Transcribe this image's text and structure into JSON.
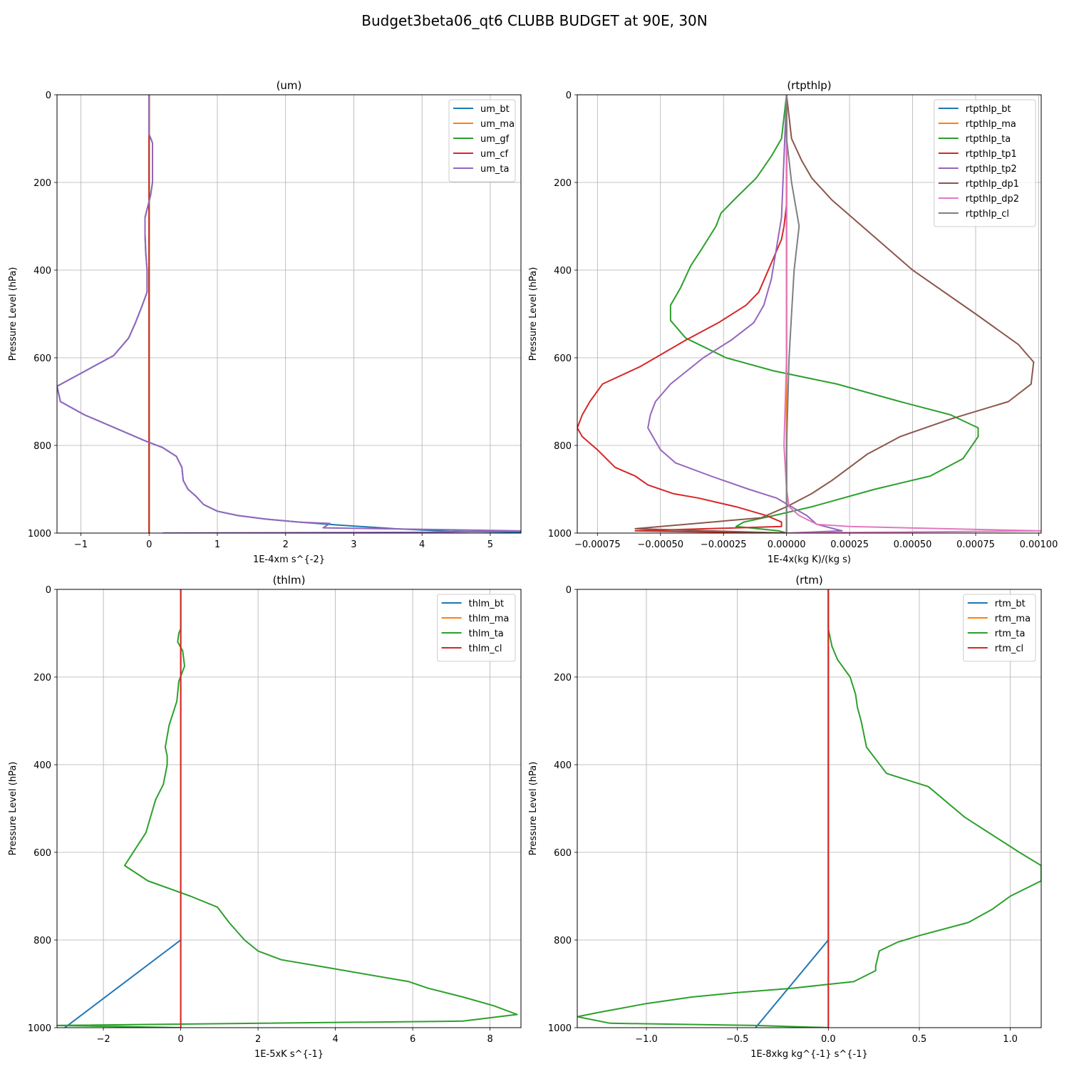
{
  "figure": {
    "title": "Budget3beta06_qt6 CLUBB BUDGET at 90E, 30N"
  },
  "colors": [
    "#1f77b4",
    "#ff7f0e",
    "#2ca02c",
    "#d62728",
    "#9467bd",
    "#8c564b",
    "#e377c2",
    "#7f7f7f"
  ],
  "chart_data": [
    {
      "type": "line",
      "title": "(um)",
      "xlabel": "1E-4xm s^{-2}",
      "ylabel": "Pressure Level (hPa)",
      "xlim": [
        -1.35,
        5.45
      ],
      "ylim": [
        1000,
        0
      ],
      "xticks": [
        -1,
        0,
        1,
        2,
        3,
        4,
        5
      ],
      "xtick_labels": [
        "−1",
        "0",
        "1",
        "2",
        "3",
        "4",
        "5"
      ],
      "yticks": [
        0,
        200,
        400,
        600,
        800,
        1000
      ],
      "grid": true,
      "legend_loc": "upper right",
      "series": [
        {
          "name": "um_bt",
          "color": "#1f77b4",
          "x": [
            0,
            0,
            0.05,
            0.05,
            0.02,
            -0.06,
            -0.06,
            -0.05,
            -0.03,
            -0.03,
            -0.1,
            -0.2,
            -0.3,
            -0.52,
            -1.35,
            -1.3,
            -0.95,
            -0.05,
            0.2,
            0.4,
            0.48,
            0.5,
            0.57,
            0.68,
            0.8,
            1.0,
            1.3,
            1.7,
            2.2,
            2.8,
            3.6,
            4.4,
            5.45
          ],
          "y": [
            0,
            90,
            110,
            200,
            230,
            280,
            320,
            360,
            400,
            450,
            480,
            520,
            555,
            595,
            665,
            700,
            730,
            790,
            805,
            825,
            850,
            880,
            900,
            915,
            935,
            950,
            960,
            968,
            975,
            982,
            990,
            996,
            998
          ]
        },
        {
          "name": "um_ma",
          "color": "#ff7f0e",
          "x": [
            0,
            0,
            0,
            0,
            0,
            0
          ],
          "y": [
            0,
            200,
            400,
            600,
            800,
            1000
          ]
        },
        {
          "name": "um_gf",
          "color": "#2ca02c",
          "x": [
            0,
            0,
            0,
            0,
            0,
            0
          ],
          "y": [
            0,
            200,
            400,
            600,
            800,
            1000
          ]
        },
        {
          "name": "um_cf",
          "color": "#d62728",
          "x": [
            0,
            0,
            0,
            0,
            0,
            0
          ],
          "y": [
            0,
            200,
            400,
            600,
            800,
            1000
          ]
        },
        {
          "name": "um_ta",
          "color": "#9467bd",
          "x": [
            0,
            0,
            0.05,
            0.05,
            0.02,
            -0.06,
            -0.06,
            -0.05,
            -0.03,
            -0.03,
            -0.1,
            -0.2,
            -0.3,
            -0.52,
            -1.35,
            -1.3,
            -0.95,
            -0.05,
            0.2,
            0.4,
            0.48,
            0.5,
            0.57,
            0.68,
            0.8,
            1.0,
            1.3,
            1.7,
            2.2,
            2.65,
            2.55,
            5.45,
            4.2,
            0.2
          ],
          "y": [
            0,
            90,
            110,
            200,
            230,
            280,
            320,
            360,
            400,
            450,
            480,
            520,
            555,
            595,
            665,
            700,
            730,
            790,
            805,
            825,
            850,
            880,
            900,
            915,
            935,
            950,
            960,
            968,
            975,
            978,
            988,
            995,
            998,
            1000
          ]
        }
      ]
    },
    {
      "type": "line",
      "title": "(rtpthlp)",
      "xlabel": "1E-4x(kg K)/(kg s)",
      "ylabel": "Pressure Level (hPa)",
      "xlim": [
        -0.00083,
        0.00101
      ],
      "ylim": [
        1000,
        0
      ],
      "xticks": [
        -0.00075,
        -0.0005,
        -0.00025,
        0,
        0.00025,
        0.0005,
        0.00075,
        0.001
      ],
      "xtick_labels": [
        "−0.00075",
        "−0.00050",
        "−0.00025",
        "0.00000",
        "0.00025",
        "0.00050",
        "0.00075",
        "0.00100"
      ],
      "yticks": [
        0,
        200,
        400,
        600,
        800,
        1000
      ],
      "grid": true,
      "legend_loc": "upper right",
      "series": [
        {
          "name": "rtpthlp_bt",
          "color": "#1f77b4",
          "x": [
            0,
            0,
            0,
            0,
            0,
            0
          ],
          "y": [
            0,
            200,
            400,
            600,
            800,
            1000
          ]
        },
        {
          "name": "rtpthlp_ma",
          "color": "#ff7f0e",
          "x": [
            0,
            0,
            0,
            0,
            0,
            0
          ],
          "y": [
            0,
            200,
            400,
            600,
            800,
            1000
          ]
        },
        {
          "name": "rtpthlp_ta",
          "color": "#2ca02c",
          "x": [
            0,
            -2e-05,
            -6e-05,
            -0.00012,
            -0.0002,
            -0.00026,
            -0.00028,
            -0.00034,
            -0.00038,
            -0.00042,
            -0.00046,
            -0.00046,
            -0.0004,
            -0.00024,
            -5e-05,
            0.0002,
            0.00045,
            0.00065,
            0.00076,
            0.00076,
            0.0007,
            0.00057,
            0.00035,
            0.0001,
            -5e-05,
            -0.00017,
            -0.0002,
            -3e-05,
            0
          ],
          "y": [
            0,
            100,
            140,
            190,
            235,
            270,
            300,
            355,
            390,
            440,
            480,
            515,
            555,
            600,
            630,
            660,
            700,
            730,
            760,
            780,
            830,
            870,
            900,
            940,
            960,
            975,
            985,
            995,
            1000
          ]
        },
        {
          "name": "rtpthlp_tp1",
          "color": "#d62728",
          "x": [
            0,
            0,
            -1e-05,
            -2e-05,
            -5e-05,
            -8e-05,
            -0.00011,
            -0.00016,
            -0.00027,
            -0.0004,
            -0.00058,
            -0.00073,
            -0.00078,
            -0.00081,
            -0.00083,
            -0.00081,
            -0.00075,
            -0.00068,
            -0.0006,
            -0.00055,
            -0.00045,
            -0.00035,
            -0.0002,
            -8e-05,
            -2e-05,
            -2e-05,
            -0.0006,
            0
          ],
          "y": [
            0,
            250,
            300,
            330,
            370,
            410,
            450,
            480,
            520,
            560,
            620,
            660,
            700,
            730,
            760,
            780,
            810,
            850,
            870,
            890,
            910,
            920,
            940,
            960,
            975,
            985,
            995,
            1000
          ]
        },
        {
          "name": "rtpthlp_tp2",
          "color": "#9467bd",
          "x": [
            0,
            -2e-05,
            -4e-05,
            -6e-05,
            -9e-05,
            -0.00013,
            -0.00022,
            -0.00033,
            -0.00046,
            -0.00052,
            -0.00054,
            -0.00055,
            -0.00053,
            -0.0005,
            -0.00044,
            -0.0003,
            -0.00015,
            -4e-05,
            2e-05,
            8e-05,
            0.00012,
            0.00022,
            0
          ],
          "y": [
            0,
            280,
            350,
            420,
            480,
            520,
            560,
            600,
            660,
            700,
            730,
            760,
            780,
            810,
            840,
            870,
            900,
            920,
            940,
            960,
            980,
            995,
            1000
          ]
        },
        {
          "name": "rtpthlp_dp1",
          "color": "#8c564b",
          "x": [
            0,
            2e-05,
            6e-05,
            0.0001,
            0.00018,
            0.0003,
            0.0005,
            0.00075,
            0.00092,
            0.00098,
            0.00097,
            0.00088,
            0.00065,
            0.00045,
            0.00032,
            0.00025,
            0.00018,
            0.0001,
            0.0,
            -0.0001,
            -0.0006,
            0
          ],
          "y": [
            0,
            100,
            150,
            190,
            240,
            300,
            400,
            500,
            570,
            610,
            660,
            700,
            740,
            780,
            820,
            850,
            880,
            910,
            940,
            965,
            990,
            1000
          ]
        },
        {
          "name": "rtpthlp_dp2",
          "color": "#e377c2",
          "x": [
            0,
            0,
            0,
            0,
            -1e-05,
            0,
            1e-05,
            5e-05,
            0.00012,
            0.00025,
            0.00101,
            0
          ],
          "y": [
            0,
            200,
            400,
            600,
            800,
            900,
            940,
            960,
            980,
            985,
            995,
            1000
          ]
        },
        {
          "name": "rtpthlp_cl",
          "color": "#7f7f7f",
          "x": [
            0,
            0,
            2e-05,
            5e-05,
            4e-05,
            3e-05,
            2e-05,
            1e-05,
            0,
            0,
            0
          ],
          "y": [
            0,
            100,
            200,
            300,
            350,
            400,
            500,
            600,
            800,
            950,
            1000
          ]
        }
      ]
    },
    {
      "type": "line",
      "title": "(thlm)",
      "xlabel": "1E-5xK s^{-1}",
      "ylabel": "Pressure Level (hPa)",
      "xlim": [
        -3.2,
        8.8
      ],
      "ylim": [
        1000,
        0
      ],
      "xticks": [
        -2,
        0,
        2,
        4,
        6,
        8
      ],
      "xtick_labels": [
        "−2",
        "0",
        "2",
        "4",
        "6",
        "8"
      ],
      "yticks": [
        0,
        200,
        400,
        600,
        800,
        1000
      ],
      "grid": true,
      "legend_loc": "upper right",
      "series": [
        {
          "name": "thlm_bt",
          "color": "#1f77b4",
          "x": [
            0,
            0,
            0,
            0,
            0,
            -3.0
          ],
          "y": [
            0,
            200,
            400,
            600,
            800,
            1000
          ]
        },
        {
          "name": "thlm_ma",
          "color": "#ff7f0e",
          "x": [
            0,
            0,
            0,
            0,
            0,
            0
          ],
          "y": [
            0,
            200,
            400,
            600,
            800,
            1000
          ]
        },
        {
          "name": "thlm_ta",
          "color": "#2ca02c",
          "x": [
            0,
            0,
            -0.05,
            -0.08,
            0.05,
            0.1,
            -0.05,
            -0.1,
            -0.3,
            -0.4,
            -0.35,
            -0.35,
            -0.45,
            -0.65,
            -0.9,
            -1.45,
            -0.85,
            0.25,
            0.95,
            1.25,
            1.65,
            2.0,
            2.6,
            3.6,
            5.9,
            6.4,
            7.3,
            8.1,
            8.7,
            7.3,
            -3.2,
            0
          ],
          "y": [
            0,
            90,
            100,
            120,
            140,
            175,
            210,
            255,
            310,
            360,
            380,
            400,
            445,
            480,
            555,
            630,
            665,
            700,
            725,
            760,
            800,
            825,
            845,
            860,
            895,
            910,
            930,
            950,
            970,
            985,
            995,
            1000
          ]
        },
        {
          "name": "thlm_cl",
          "color": "#d62728",
          "x": [
            0,
            0,
            0,
            0,
            0,
            0
          ],
          "y": [
            0,
            200,
            400,
            600,
            800,
            1000
          ]
        }
      ]
    },
    {
      "type": "line",
      "title": "(rtm)",
      "xlabel": "1E-8xkg kg^{-1} s^{-1}",
      "ylabel": "Pressure Level (hPa)",
      "xlim": [
        -1.38,
        1.17
      ],
      "ylim": [
        1000,
        0
      ],
      "xticks": [
        -1.0,
        -0.5,
        0.0,
        0.5,
        1.0
      ],
      "xtick_labels": [
        "−1.0",
        "−0.5",
        "0.0",
        "0.5",
        "1.0"
      ],
      "yticks": [
        0,
        200,
        400,
        600,
        800,
        1000
      ],
      "grid": true,
      "legend_loc": "upper right",
      "series": [
        {
          "name": "rtm_bt",
          "color": "#1f77b4",
          "x": [
            0,
            0,
            0,
            0,
            0,
            -0.4
          ],
          "y": [
            0,
            200,
            400,
            600,
            800,
            1000
          ]
        },
        {
          "name": "rtm_ma",
          "color": "#ff7f0e",
          "x": [
            0,
            0,
            0,
            0,
            0,
            0
          ],
          "y": [
            0,
            200,
            400,
            600,
            800,
            1000
          ]
        },
        {
          "name": "rtm_ta",
          "color": "#2ca02c",
          "x": [
            0,
            0,
            0.02,
            0.05,
            0.12,
            0.15,
            0.16,
            0.18,
            0.21,
            0.32,
            0.55,
            0.75,
            0.9,
            1.05,
            1.17,
            1.17,
            1.0,
            0.9,
            0.77,
            0.5,
            0.38,
            0.28,
            0.26,
            0.26,
            0.14,
            -0.2,
            -0.5,
            -0.75,
            -1.0,
            -1.26,
            -1.38,
            -1.2,
            -0.4,
            0
          ],
          "y": [
            0,
            90,
            130,
            160,
            200,
            240,
            270,
            300,
            360,
            420,
            450,
            520,
            560,
            600,
            630,
            665,
            700,
            730,
            760,
            790,
            805,
            825,
            860,
            870,
            895,
            910,
            920,
            930,
            945,
            965,
            975,
            990,
            995,
            1000
          ]
        },
        {
          "name": "rtm_cl",
          "color": "#d62728",
          "x": [
            0,
            0,
            0,
            0,
            0,
            0
          ],
          "y": [
            0,
            200,
            400,
            600,
            800,
            1000
          ]
        }
      ]
    }
  ]
}
